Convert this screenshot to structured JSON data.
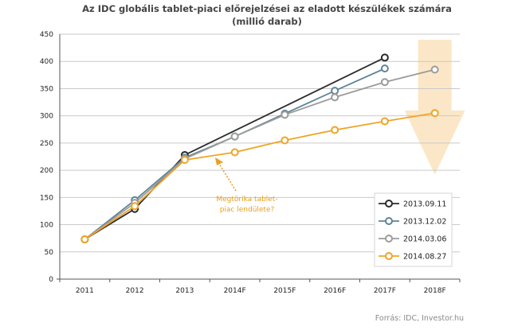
{
  "chart_data": {
    "type": "line",
    "title": "Az IDC globális tablet-piaci előrejelzései  az eladott  készülékek  számára",
    "subtitle": "(millió darab)",
    "categories": [
      "2011",
      "2012",
      "2013",
      "2014F",
      "2015F",
      "2016F",
      "2017F",
      "2018F"
    ],
    "ylim": [
      0,
      450
    ],
    "yticks": [
      "0",
      "50",
      "100",
      "150",
      "200",
      "250",
      "300",
      "350",
      "400",
      "450"
    ],
    "grid": true,
    "legend_position": "bottom-right",
    "series": [
      {
        "name": "2013.09.11",
        "color": "#2b2b2b",
        "values": [
          73,
          129,
          228,
          null,
          null,
          null,
          407,
          null
        ]
      },
      {
        "name": "2013.12.02",
        "color": "#5e8597",
        "values": [
          73,
          145,
          223,
          262,
          304,
          346,
          387,
          null
        ]
      },
      {
        "name": "2014.03.06",
        "color": "#9b9b9b",
        "values": [
          73,
          140,
          221,
          262,
          302,
          334,
          362,
          385
        ]
      },
      {
        "name": "2014.08.27",
        "color": "#f0a424",
        "values": [
          73,
          134,
          219,
          233,
          255,
          274,
          290,
          305
        ]
      }
    ],
    "annotation": {
      "lines": [
        "Megtörika tablet-",
        "piac lendülete?"
      ],
      "color": "#e8a020"
    },
    "arrow_color": "#fbe7c7",
    "source": "Forrás: IDC, Investor.hu"
  }
}
